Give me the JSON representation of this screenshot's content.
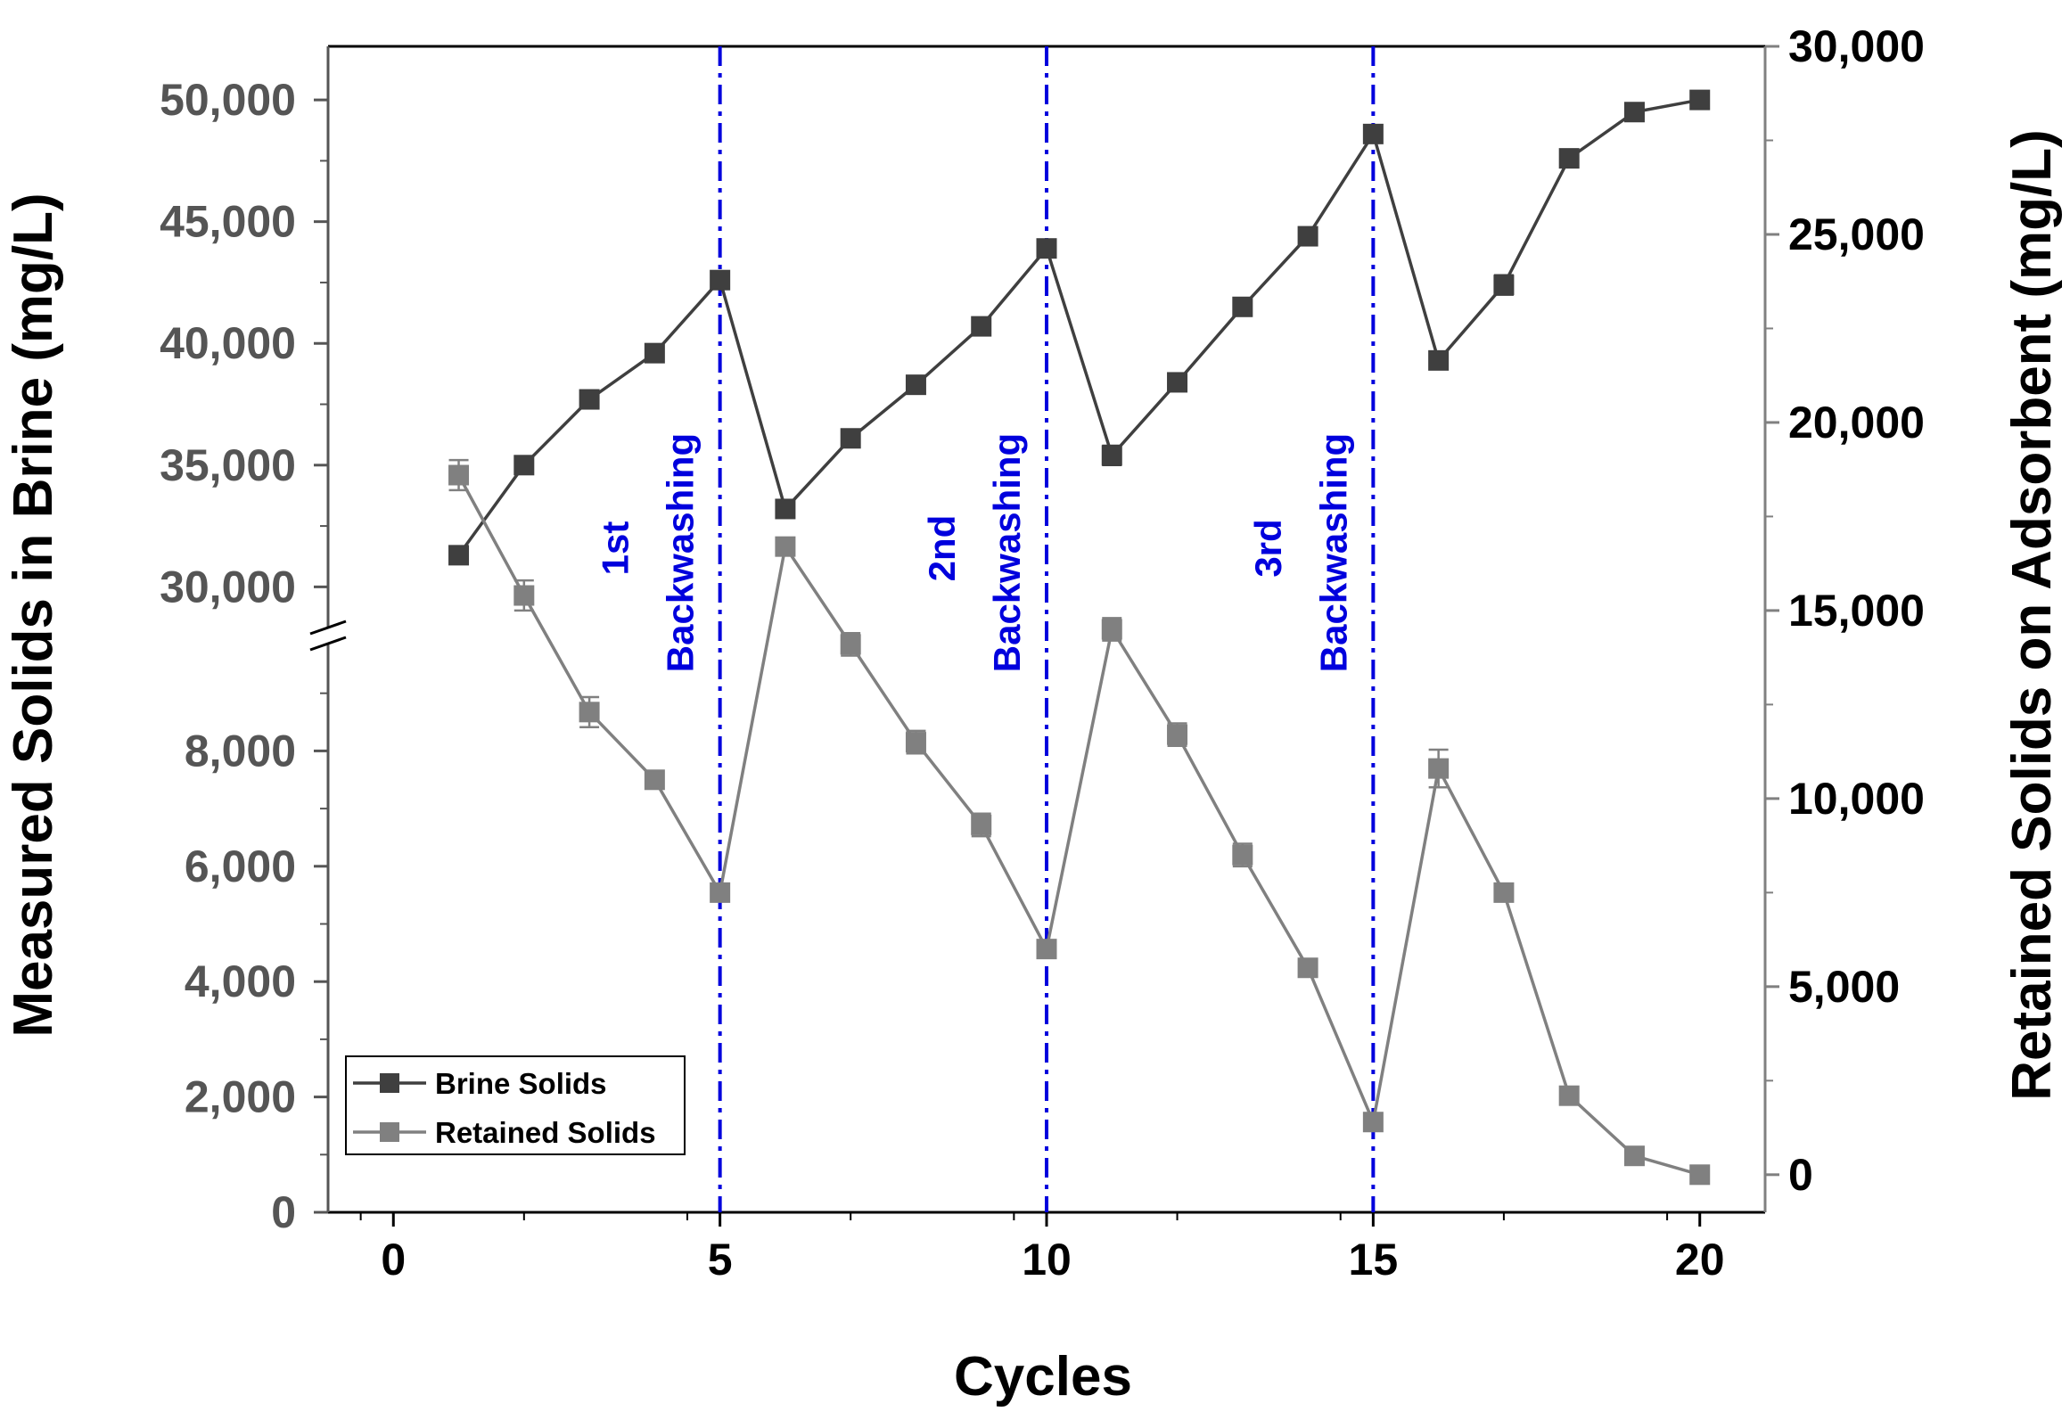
{
  "chart_data": {
    "type": "line",
    "x_axis": {
      "label": "Cycles",
      "range": [
        -1,
        21
      ],
      "ticks": [
        0,
        5,
        10,
        15,
        20
      ]
    },
    "left_axis": {
      "label": "Measured Solids in Brine (mg/L)",
      "lower_segment": {
        "range": [
          0,
          10000
        ],
        "ticks": [
          0,
          2000,
          4000,
          6000,
          8000
        ],
        "tick_labels": [
          "0",
          "2,000",
          "4,000",
          "6,000",
          "8,000"
        ]
      },
      "upper_segment": {
        "range": [
          28000,
          52200
        ],
        "ticks": [
          30000,
          35000,
          40000,
          45000,
          50000
        ],
        "tick_labels": [
          "30,000",
          "35,000",
          "40,000",
          "45,000",
          "50,000"
        ]
      }
    },
    "right_axis": {
      "label": "Retained Solids on Adsorbent (mg/L)",
      "range": [
        -1000,
        30000
      ],
      "ticks": [
        0,
        5000,
        10000,
        15000,
        20000,
        25000,
        30000
      ],
      "tick_labels": [
        "0",
        "5,000",
        "10,000",
        "15,000",
        "20,000",
        "25,000",
        "30,000"
      ]
    },
    "series": [
      {
        "name": "Brine Solids",
        "axis": "left",
        "color": "#3f3f3f",
        "x": [
          1,
          2,
          3,
          4,
          5,
          6,
          7,
          8,
          9,
          10,
          11,
          12,
          13,
          14,
          15,
          16,
          17,
          18,
          19,
          20
        ],
        "values": [
          31300,
          35000,
          37700,
          39600,
          42600,
          33200,
          36100,
          38300,
          40700,
          43900,
          35400,
          38400,
          41500,
          44400,
          48600,
          39300,
          42400,
          47600,
          49500,
          50000
        ],
        "error": [
          350,
          0,
          200,
          0,
          0,
          0,
          300,
          0,
          0,
          0,
          400,
          300,
          0,
          0,
          0,
          300,
          400,
          0,
          0,
          0
        ]
      },
      {
        "name": "Retained Solids",
        "axis": "right",
        "color": "#808080",
        "x": [
          1,
          2,
          3,
          4,
          5,
          6,
          7,
          8,
          9,
          10,
          11,
          12,
          13,
          14,
          15,
          16,
          17,
          18,
          19,
          20
        ],
        "values": [
          18600,
          15400,
          12300,
          10500,
          7500,
          16700,
          14100,
          11500,
          9300,
          6000,
          14500,
          11700,
          8500,
          5500,
          1400,
          10800,
          7500,
          2100,
          500,
          0
        ],
        "error": [
          400,
          400,
          400,
          200,
          200,
          200,
          300,
          300,
          300,
          200,
          300,
          300,
          300,
          100,
          100,
          500,
          200,
          0,
          0,
          0
        ]
      }
    ],
    "vlines": [
      5,
      10,
      15
    ],
    "annotations": [
      {
        "x": 3.4,
        "text": "1st"
      },
      {
        "x": 4.4,
        "text": "Backwashing"
      },
      {
        "x": 8.4,
        "text": "2nd"
      },
      {
        "x": 9.4,
        "text": "Backwashing"
      },
      {
        "x": 13.4,
        "text": "3rd"
      },
      {
        "x": 14.4,
        "text": "Backwashing"
      }
    ],
    "legend": {
      "position": "bottom-left",
      "entries": [
        "Brine Solids",
        "Retained Solids"
      ]
    },
    "colors": {
      "left_axis": "#555555",
      "right_axis": "#808080",
      "vline": "#0000dd",
      "axes": "#000000"
    }
  }
}
